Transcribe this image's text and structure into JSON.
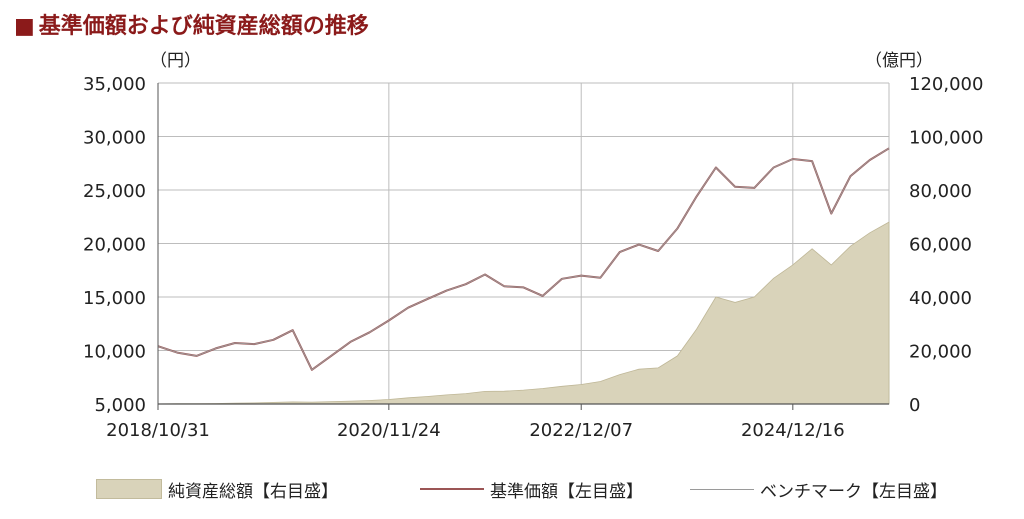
{
  "title": "基準価額および純資産総額の推移",
  "title_marker": "■",
  "chart_data": {
    "type": "line",
    "left_axis": {
      "unit": "（円）",
      "min": 5000,
      "max": 35000,
      "ticks": [
        "5,000",
        "10,000",
        "15,000",
        "20,000",
        "25,000",
        "30,000",
        "35,000"
      ]
    },
    "right_axis": {
      "unit": "（億円）",
      "min": 0,
      "max": 120000,
      "ticks": [
        "0",
        "20,000",
        "40,000",
        "60,000",
        "80,000",
        "100,000",
        "120,000"
      ]
    },
    "x_tick_labels": [
      "2018/10/31",
      "2020/11/24",
      "2022/12/07",
      "2024/12/16"
    ],
    "grid": true,
    "legend_position": "bottom",
    "legend": [
      {
        "label": "純資産総額【右目盛】",
        "kind": "area"
      },
      {
        "label": "基準価額【左目盛】",
        "kind": "line"
      },
      {
        "label": "ベンチマーク【左目盛】",
        "kind": "thin-line"
      }
    ],
    "x": [
      "2018/10/31",
      "2018/12",
      "2019/01",
      "2019/03",
      "2019/06",
      "2019/09",
      "2019/12",
      "2020/02",
      "2020/03",
      "2020/04",
      "2020/06",
      "2020/09",
      "2020/11/24",
      "2021/02",
      "2021/04",
      "2021/07",
      "2021/09",
      "2021/12",
      "2022/01",
      "2022/03",
      "2022/06",
      "2022/09",
      "2022/12/07",
      "2023/03",
      "2023/06",
      "2023/09",
      "2023/10",
      "2023/12",
      "2024/03",
      "2024/06",
      "2024/07",
      "2024/08",
      "2024/10",
      "2024/12/16",
      "2025/02",
      "2025/04",
      "2025/05",
      "2025/07",
      "2025/08"
    ],
    "series": [
      {
        "name": "基準価額【左目盛】",
        "axis": "left",
        "color": "#9b5555",
        "values": [
          10400,
          9800,
          9500,
          10200,
          10700,
          10600,
          11000,
          11900,
          8200,
          9500,
          10800,
          11700,
          12800,
          14000,
          14800,
          15600,
          16200,
          17100,
          16000,
          15900,
          15100,
          16700,
          17000,
          16800,
          19200,
          19900,
          19300,
          21400,
          24400,
          27100,
          25300,
          25200,
          27100,
          27900,
          27700,
          22800,
          26300,
          27800,
          28900
        ]
      },
      {
        "name": "ベンチマーク【左目盛】",
        "axis": "left",
        "color": "#a0a0a0",
        "values": [
          10400,
          9800,
          9500,
          10200,
          10700,
          10600,
          11000,
          11900,
          8200,
          9500,
          10800,
          11700,
          12800,
          14000,
          14800,
          15600,
          16200,
          17100,
          16000,
          15900,
          15100,
          16700,
          17000,
          16800,
          19200,
          19900,
          19300,
          21400,
          24400,
          27100,
          25300,
          25200,
          27100,
          27900,
          27700,
          22800,
          26300,
          27800,
          28900
        ]
      },
      {
        "name": "純資産総額【右目盛】",
        "axis": "right",
        "color": "#d9d3ba",
        "values": [
          50,
          100,
          150,
          200,
          300,
          400,
          600,
          800,
          700,
          900,
          1100,
          1300,
          1700,
          2300,
          2800,
          3400,
          3900,
          4700,
          4800,
          5200,
          5800,
          6600,
          7300,
          8400,
          11000,
          13000,
          13500,
          18000,
          28000,
          40000,
          38000,
          40000,
          47000,
          52000,
          58000,
          52000,
          59000,
          64000,
          68000
        ]
      }
    ]
  }
}
